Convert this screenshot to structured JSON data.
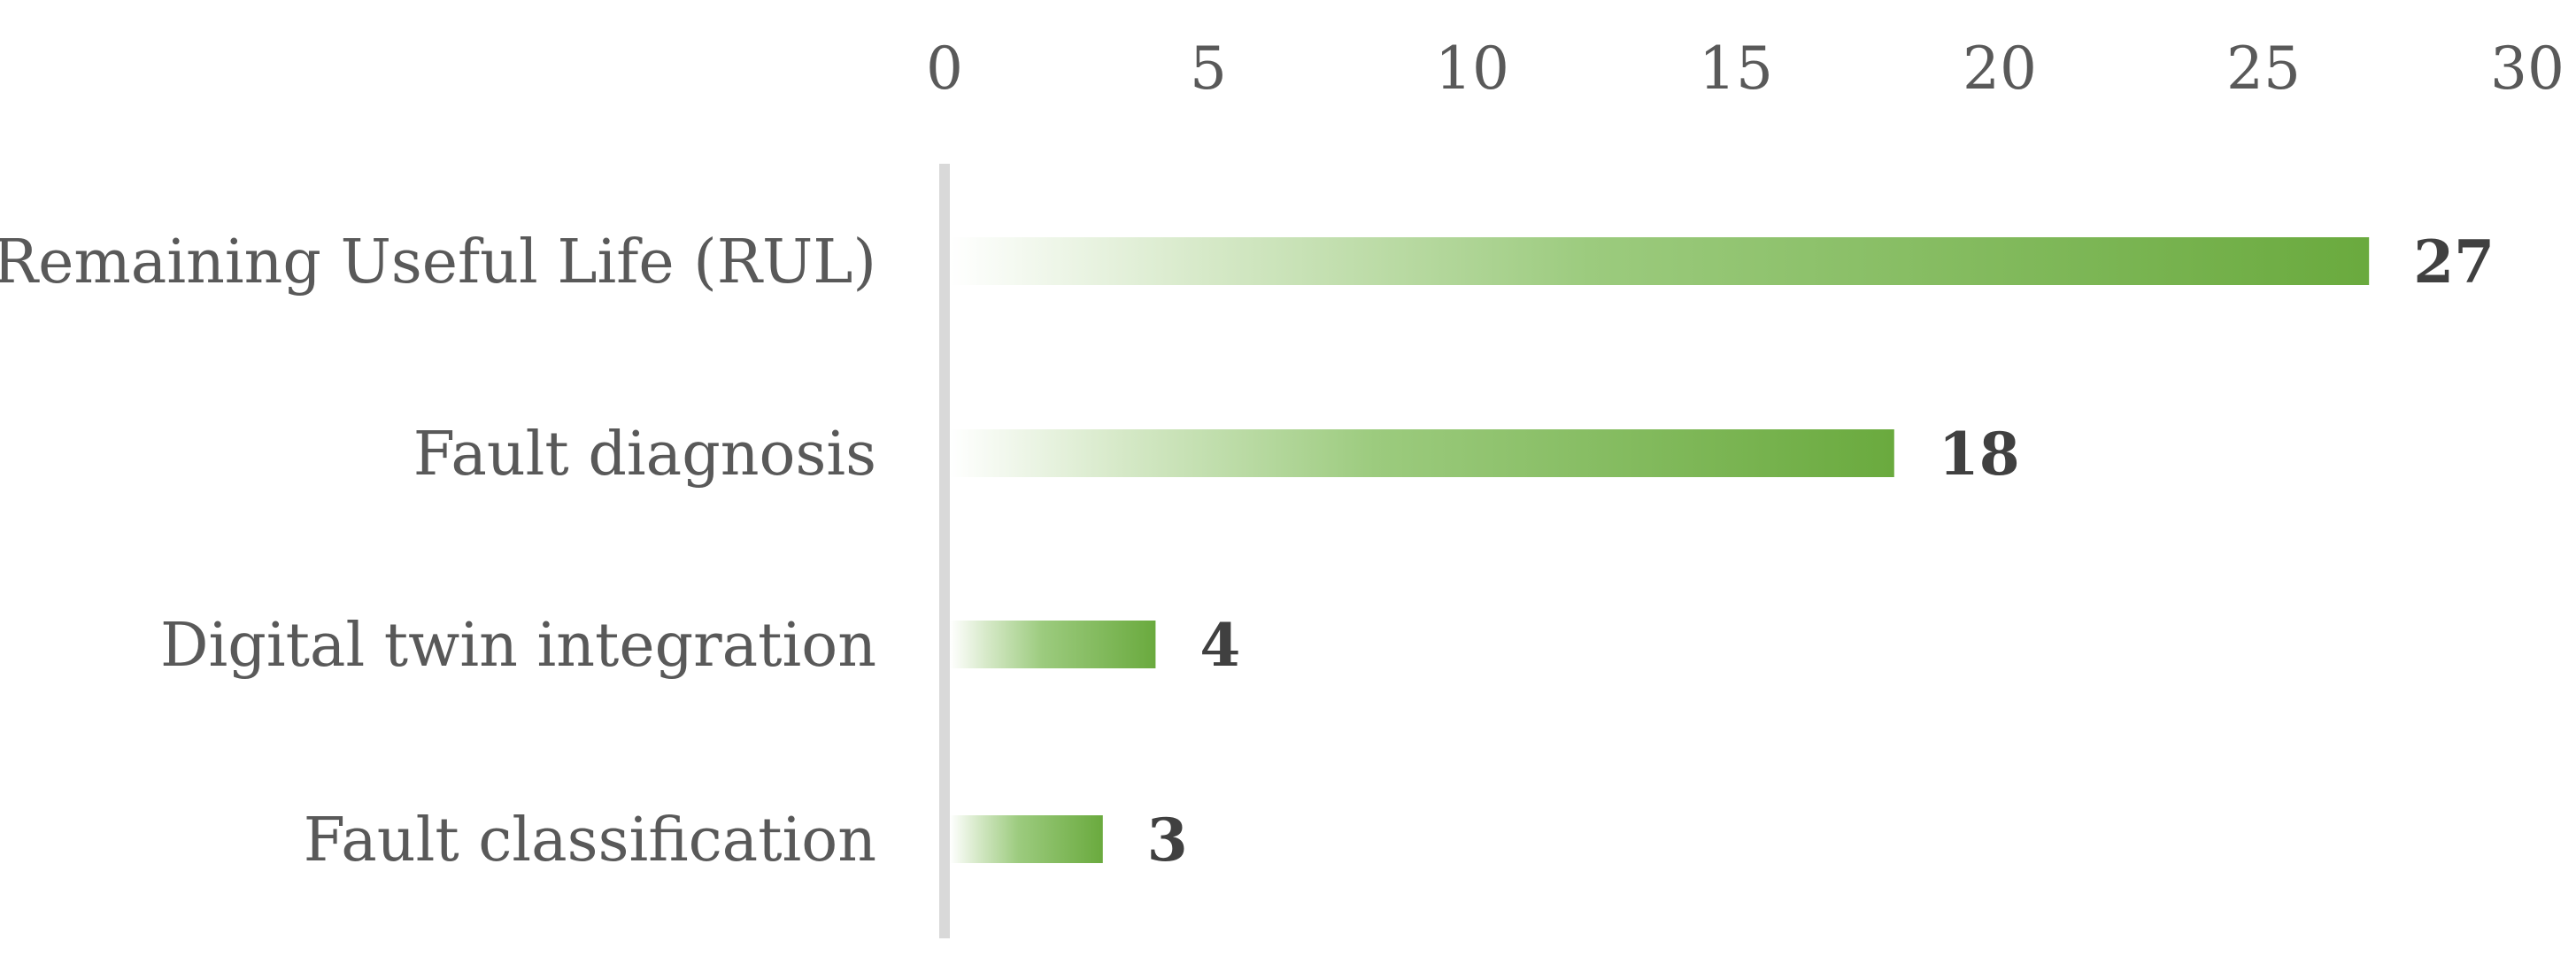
{
  "chart_data": {
    "type": "bar",
    "orientation": "horizontal",
    "categories": [
      "Remaining Useful Life (RUL)",
      "Fault diagnosis",
      "Digital twin integration",
      "Fault classification"
    ],
    "values": [
      27,
      18,
      4,
      3
    ],
    "data_labels": [
      "27",
      "18",
      "4",
      "3"
    ],
    "xlim": [
      0,
      30
    ],
    "x_ticks": [
      0,
      5,
      10,
      15,
      20,
      25,
      30
    ],
    "x_tick_labels": [
      "0",
      "5",
      "10",
      "15",
      "20",
      "25",
      "30"
    ],
    "x_axis_position": "top",
    "grid": false,
    "legend": "none",
    "bar_fill": "gradient",
    "colors": {
      "bar_start": "#ffffff",
      "bar_end": "#6aaa3e",
      "axis_line": "#d9d9d9",
      "tick_label": "#595959",
      "category_label": "#595959",
      "data_label": "#404040"
    }
  }
}
